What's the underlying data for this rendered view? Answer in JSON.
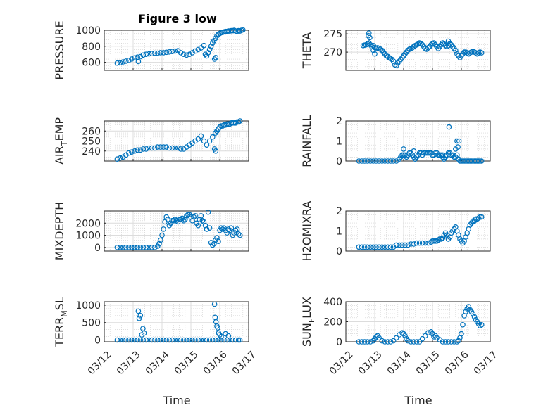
{
  "figure": {
    "title": "Figure 3 low",
    "xlabel": "Time"
  },
  "chart_data": [
    {
      "type": "scatter",
      "id": "pressure",
      "ylabel": "PRESSURE",
      "xlim": [
        "03/12",
        "03/17"
      ],
      "ylim": [
        500,
        1000
      ],
      "yticks": [
        600,
        800,
        1000
      ],
      "xticks": [
        "03/12",
        "03/13",
        "03/14",
        "03/15",
        "03/16",
        "03/17"
      ],
      "x": [
        0.45,
        0.55,
        0.65,
        0.75,
        0.85,
        0.95,
        1.05,
        1.15,
        1.25,
        1.35,
        1.45,
        1.55,
        1.65,
        1.75,
        1.85,
        1.95,
        2.05,
        2.15,
        2.25,
        2.35,
        2.45,
        2.55,
        2.65,
        2.75,
        2.85,
        2.95,
        3.05,
        3.15,
        3.25,
        3.35,
        3.45,
        3.5,
        3.55,
        3.6,
        3.65,
        3.7,
        3.75,
        3.8,
        3.85,
        3.9,
        3.95,
        4.0,
        4.05,
        4.1,
        4.15,
        4.2,
        4.25,
        4.3,
        4.35,
        4.4,
        4.45,
        4.5,
        4.55,
        4.6,
        4.65,
        4.7,
        4.75,
        4.8,
        1.18,
        3.82,
        3.86
      ],
      "y": [
        590,
        595,
        605,
        615,
        625,
        640,
        655,
        665,
        670,
        690,
        700,
        705,
        710,
        715,
        715,
        720,
        720,
        725,
        730,
        735,
        740,
        745,
        720,
        700,
        690,
        700,
        720,
        740,
        760,
        780,
        810,
        700,
        680,
        720,
        760,
        800,
        840,
        870,
        900,
        930,
        950,
        960,
        970,
        975,
        980,
        985,
        985,
        990,
        990,
        995,
        995,
        1000,
        990,
        985,
        995,
        990,
        1000,
        1005,
        610,
        640,
        660
      ]
    },
    {
      "type": "scatter",
      "id": "theta",
      "ylabel": "THETA",
      "xlim": [
        "03/12",
        "03/17"
      ],
      "ylim": [
        265,
        276
      ],
      "yticks": [
        270,
        275
      ],
      "xticks": [
        "03/12",
        "03/13",
        "03/14",
        "03/15",
        "03/16",
        "03/17"
      ],
      "x": [
        0.6,
        0.65,
        0.7,
        0.75,
        0.8,
        0.85,
        0.9,
        0.95,
        1.0,
        1.05,
        1.1,
        1.15,
        1.2,
        1.25,
        1.3,
        1.35,
        1.4,
        1.45,
        1.5,
        1.55,
        1.6,
        1.65,
        1.7,
        1.75,
        1.8,
        1.85,
        1.9,
        1.95,
        2.0,
        2.05,
        2.1,
        2.15,
        2.2,
        2.25,
        2.3,
        2.35,
        2.4,
        2.45,
        2.5,
        2.55,
        2.6,
        2.65,
        2.7,
        2.75,
        2.8,
        2.85,
        2.9,
        2.95,
        3.0,
        3.05,
        3.1,
        3.15,
        3.2,
        3.25,
        3.3,
        3.35,
        3.4,
        3.45,
        3.5,
        3.55,
        3.6,
        3.65,
        3.7,
        3.75,
        3.8,
        3.85,
        3.9,
        3.95,
        4.0,
        4.05,
        4.1,
        4.15,
        4.2,
        4.25,
        4.3,
        4.35,
        4.4,
        4.45,
        4.5,
        4.55,
        4.6,
        4.65,
        4.7,
        0.78,
        0.8,
        0.83,
        0.95,
        1.0,
        3.55,
        3.6
      ],
      "y": [
        271.8,
        271.9,
        272.0,
        272.3,
        272.5,
        272.0,
        271.5,
        271.8,
        271.3,
        271.0,
        271.2,
        271.0,
        270.8,
        270.5,
        270.0,
        269.5,
        269.0,
        268.8,
        268.5,
        268.2,
        268.0,
        267.5,
        266.5,
        266.3,
        267.0,
        267.5,
        268.0,
        268.5,
        269.0,
        269.5,
        270.0,
        270.5,
        270.8,
        271.0,
        271.2,
        271.5,
        271.8,
        272.0,
        272.2,
        272.5,
        272.3,
        272.0,
        271.5,
        271.0,
        270.8,
        271.2,
        271.5,
        272.0,
        272.3,
        272.5,
        272.0,
        271.5,
        271.0,
        271.5,
        272.0,
        272.5,
        272.2,
        271.8,
        271.5,
        271.8,
        272.3,
        272.0,
        271.5,
        271.0,
        270.5,
        269.5,
        269.0,
        268.5,
        269.0,
        269.5,
        270.0,
        270.0,
        269.8,
        269.5,
        269.8,
        270.0,
        270.2,
        270.0,
        269.8,
        269.5,
        269.8,
        270.0,
        269.8,
        274.5,
        275.2,
        274.0,
        270.5,
        269.5,
        273.0,
        272.2
      ]
    },
    {
      "type": "scatter",
      "id": "air_temp",
      "ylabel": "AIR_TEMP",
      "xlim": [
        "03/12",
        "03/17"
      ],
      "ylim": [
        230,
        270
      ],
      "yticks": [
        240,
        250,
        260
      ],
      "xticks": [
        "03/12",
        "03/13",
        "03/14",
        "03/15",
        "03/16",
        "03/17"
      ],
      "x": [
        0.45,
        0.55,
        0.65,
        0.75,
        0.85,
        0.95,
        1.05,
        1.15,
        1.25,
        1.35,
        1.45,
        1.55,
        1.65,
        1.75,
        1.85,
        1.95,
        2.05,
        2.15,
        2.25,
        2.35,
        2.45,
        2.55,
        2.65,
        2.75,
        2.85,
        2.95,
        3.05,
        3.15,
        3.25,
        3.35,
        3.45,
        3.55,
        3.65,
        3.75,
        3.85,
        3.9,
        3.95,
        4.0,
        4.05,
        4.1,
        4.15,
        4.2,
        4.25,
        4.3,
        4.35,
        4.4,
        4.45,
        4.5,
        4.55,
        4.6,
        4.65,
        4.7,
        3.82,
        3.86
      ],
      "y": [
        232,
        233,
        234,
        236,
        238,
        239,
        240,
        241,
        241,
        242,
        242,
        243,
        243,
        243,
        244,
        244,
        244,
        244,
        243,
        243,
        243,
        243,
        242,
        242,
        244,
        246,
        248,
        250,
        252,
        255,
        250,
        246,
        250,
        254,
        258,
        260,
        262,
        264,
        265,
        265,
        266,
        266,
        267,
        267,
        267,
        268,
        268,
        268,
        268,
        269,
        269,
        270,
        242,
        240
      ]
    },
    {
      "type": "scatter",
      "id": "rainfall",
      "ylabel": "RAINFALL",
      "xlim": [
        "03/12",
        "03/17"
      ],
      "ylim": [
        0,
        2
      ],
      "yticks": [
        0,
        1,
        2
      ],
      "xticks": [
        "03/12",
        "03/13",
        "03/14",
        "03/15",
        "03/16",
        "03/17"
      ],
      "x": [
        0.45,
        0.55,
        0.65,
        0.75,
        0.85,
        0.95,
        1.05,
        1.15,
        1.25,
        1.35,
        1.45,
        1.55,
        1.65,
        1.75,
        1.85,
        1.9,
        1.95,
        2.0,
        2.05,
        2.1,
        2.15,
        2.2,
        2.25,
        2.3,
        2.35,
        2.4,
        2.45,
        2.5,
        2.55,
        2.6,
        2.65,
        2.7,
        2.75,
        2.8,
        2.85,
        2.9,
        2.95,
        3.0,
        3.05,
        3.1,
        3.15,
        3.2,
        3.25,
        3.3,
        3.35,
        3.4,
        3.45,
        3.5,
        3.55,
        3.6,
        3.65,
        3.7,
        3.75,
        3.8,
        3.85,
        3.9,
        3.95,
        4.0,
        4.05,
        4.1,
        4.15,
        4.2,
        4.25,
        4.3,
        4.35,
        4.4,
        4.45,
        4.5,
        4.55,
        4.6,
        4.65,
        4.7,
        3.57,
        3.85,
        3.92,
        3.88,
        2.0,
        2.35,
        3.35,
        3.8
      ],
      "y": [
        0,
        0,
        0,
        0,
        0,
        0,
        0,
        0,
        0,
        0,
        0,
        0,
        0,
        0,
        0.1,
        0.2,
        0.3,
        0.3,
        0.3,
        0.2,
        0.3,
        0.4,
        0.4,
        0.3,
        0.2,
        0.1,
        0.2,
        0.3,
        0.4,
        0.4,
        0.3,
        0.4,
        0.4,
        0.4,
        0.4,
        0.4,
        0.4,
        0.3,
        0.3,
        0.4,
        0.4,
        0.3,
        0.3,
        0.3,
        0.2,
        0.1,
        0.2,
        0.3,
        0.4,
        0.4,
        0.3,
        0.3,
        0.2,
        0.2,
        0.3,
        0.1,
        0,
        0,
        0,
        0,
        0,
        0,
        0,
        0,
        0,
        0,
        0,
        0,
        0,
        0,
        0,
        0,
        1.7,
        1.0,
        1.0,
        0.7,
        0.6,
        0.5,
        0.3,
        0.6
      ]
    },
    {
      "type": "scatter",
      "id": "mixdepth",
      "ylabel": "MIXDEPTH",
      "xlim": [
        "03/12",
        "03/17"
      ],
      "ylim": [
        -300,
        3000
      ],
      "yticks": [
        0,
        1000,
        2000
      ],
      "xticks": [
        "03/12",
        "03/13",
        "03/14",
        "03/15",
        "03/16",
        "03/17"
      ],
      "x": [
        0.45,
        0.55,
        0.65,
        0.75,
        0.85,
        0.95,
        1.05,
        1.15,
        1.25,
        1.35,
        1.45,
        1.55,
        1.65,
        1.75,
        1.85,
        1.9,
        1.95,
        2.0,
        2.05,
        2.1,
        2.15,
        2.2,
        2.25,
        2.3,
        2.35,
        2.4,
        2.45,
        2.5,
        2.55,
        2.6,
        2.65,
        2.7,
        2.75,
        2.8,
        2.85,
        2.9,
        2.95,
        3.0,
        3.05,
        3.1,
        3.15,
        3.2,
        3.25,
        3.3,
        3.35,
        3.4,
        3.45,
        3.5,
        3.55,
        3.6,
        3.65,
        3.7,
        3.75,
        3.8,
        3.85,
        3.9,
        3.95,
        4.0,
        4.05,
        4.1,
        4.15,
        4.2,
        4.25,
        4.3,
        4.35,
        4.4,
        4.45,
        4.5,
        4.55,
        4.6,
        4.65,
        4.7
      ],
      "y": [
        0,
        0,
        0,
        0,
        0,
        0,
        0,
        0,
        0,
        0,
        0,
        0,
        0,
        0,
        100,
        300,
        600,
        1000,
        1500,
        2100,
        2500,
        2300,
        1800,
        2000,
        2200,
        2200,
        2300,
        2200,
        2100,
        2300,
        2300,
        2400,
        2200,
        2300,
        2600,
        2700,
        2700,
        2500,
        2200,
        2500,
        2600,
        2000,
        1800,
        2300,
        2600,
        2200,
        2100,
        1800,
        1500,
        2900,
        1600,
        400,
        200,
        300,
        600,
        800,
        500,
        1400,
        1600,
        1500,
        1600,
        1400,
        1200,
        1500,
        1400,
        1600,
        1000,
        1200,
        1400,
        1500,
        1100,
        1000
      ]
    },
    {
      "type": "scatter",
      "id": "h2omixra",
      "ylabel": "H2OMIXRA",
      "xlim": [
        "03/12",
        "03/17"
      ],
      "ylim": [
        0,
        2
      ],
      "yticks": [
        0,
        1,
        2
      ],
      "xticks": [
        "03/12",
        "03/13",
        "03/14",
        "03/15",
        "03/16",
        "03/17"
      ],
      "x": [
        0.45,
        0.55,
        0.65,
        0.75,
        0.85,
        0.95,
        1.05,
        1.15,
        1.25,
        1.35,
        1.45,
        1.55,
        1.65,
        1.75,
        1.85,
        1.95,
        2.05,
        2.15,
        2.25,
        2.35,
        2.45,
        2.55,
        2.65,
        2.75,
        2.85,
        2.95,
        3.0,
        3.05,
        3.1,
        3.15,
        3.2,
        3.25,
        3.3,
        3.35,
        3.4,
        3.45,
        3.5,
        3.55,
        3.6,
        3.65,
        3.7,
        3.75,
        3.8,
        3.85,
        3.9,
        3.95,
        4.0,
        4.05,
        4.1,
        4.15,
        4.2,
        4.25,
        4.3,
        4.35,
        4.4,
        4.45,
        4.5,
        4.55,
        4.6,
        4.65,
        4.7
      ],
      "y": [
        0.2,
        0.2,
        0.2,
        0.2,
        0.2,
        0.2,
        0.2,
        0.2,
        0.2,
        0.2,
        0.2,
        0.2,
        0.2,
        0.3,
        0.3,
        0.3,
        0.3,
        0.3,
        0.35,
        0.35,
        0.4,
        0.4,
        0.4,
        0.4,
        0.4,
        0.45,
        0.5,
        0.5,
        0.5,
        0.5,
        0.55,
        0.6,
        0.6,
        0.65,
        0.8,
        0.9,
        0.8,
        0.6,
        0.7,
        0.9,
        1.0,
        1.1,
        1.2,
        1.0,
        0.8,
        0.6,
        0.5,
        0.4,
        0.5,
        0.7,
        0.9,
        1.1,
        1.3,
        1.4,
        1.5,
        1.5,
        1.6,
        1.6,
        1.65,
        1.7,
        1.7
      ]
    },
    {
      "type": "scatter",
      "id": "terr_msl",
      "ylabel": "TERR_MSL",
      "xlim": [
        "03/12",
        "03/17"
      ],
      "ylim": [
        -50,
        1100
      ],
      "yticks": [
        0,
        500,
        1000
      ],
      "xticks": [
        "03/12",
        "03/13",
        "03/14",
        "03/15",
        "03/16",
        "03/17"
      ],
      "x": [
        0.45,
        0.55,
        0.65,
        0.75,
        0.85,
        0.95,
        1.05,
        1.15,
        1.25,
        1.35,
        1.45,
        1.55,
        1.65,
        1.75,
        1.85,
        1.95,
        2.05,
        2.15,
        2.25,
        2.35,
        2.45,
        2.55,
        2.65,
        2.75,
        2.85,
        2.95,
        3.05,
        3.15,
        3.25,
        3.35,
        3.45,
        3.55,
        3.65,
        3.75,
        3.85,
        3.95,
        4.05,
        4.15,
        4.25,
        4.35,
        4.45,
        4.55,
        4.65,
        4.7,
        1.18,
        1.21,
        1.25,
        1.3,
        1.34,
        1.38,
        3.82,
        3.84,
        3.87,
        3.9,
        3.93,
        3.96,
        4.0,
        4.05,
        4.2,
        4.3
      ],
      "y": [
        0,
        0,
        0,
        0,
        0,
        0,
        0,
        0,
        0,
        0,
        0,
        0,
        0,
        0,
        0,
        0,
        0,
        0,
        0,
        0,
        0,
        0,
        0,
        0,
        0,
        0,
        0,
        0,
        0,
        0,
        0,
        0,
        0,
        0,
        0,
        0,
        0,
        0,
        0,
        0,
        0,
        0,
        0,
        0,
        830,
        620,
        700,
        150,
        330,
        200,
        1030,
        650,
        520,
        400,
        350,
        200,
        150,
        100,
        180,
        120
      ]
    },
    {
      "type": "scatter",
      "id": "sun_flux",
      "ylabel": "SUN_FLUX",
      "xlim": [
        "03/12",
        "03/17"
      ],
      "ylim": [
        0,
        400
      ],
      "yticks": [
        0,
        200,
        400
      ],
      "xticks": [
        "03/12",
        "03/13",
        "03/14",
        "03/15",
        "03/16",
        "03/17"
      ],
      "x": [
        0.45,
        0.55,
        0.65,
        0.75,
        0.85,
        0.95,
        1.0,
        1.05,
        1.1,
        1.15,
        1.25,
        1.35,
        1.45,
        1.55,
        1.65,
        1.75,
        1.85,
        1.95,
        2.0,
        2.05,
        2.1,
        2.15,
        2.25,
        2.35,
        2.45,
        2.55,
        2.65,
        2.75,
        2.85,
        2.95,
        3.0,
        3.05,
        3.1,
        3.15,
        3.25,
        3.35,
        3.45,
        3.55,
        3.65,
        3.75,
        3.85,
        3.9,
        3.95,
        4.0,
        4.05,
        4.1,
        4.15,
        4.2,
        4.25,
        4.3,
        4.35,
        4.4,
        4.45,
        4.5,
        4.55,
        4.6,
        4.65,
        4.7
      ],
      "y": [
        0,
        0,
        0,
        0,
        0,
        10,
        30,
        50,
        60,
        40,
        10,
        0,
        0,
        0,
        10,
        40,
        70,
        90,
        80,
        60,
        30,
        10,
        0,
        0,
        0,
        0,
        30,
        60,
        90,
        100,
        80,
        50,
        60,
        40,
        20,
        0,
        0,
        0,
        0,
        0,
        0,
        10,
        40,
        80,
        170,
        260,
        300,
        330,
        350,
        320,
        300,
        280,
        250,
        220,
        200,
        180,
        160,
        170
      ]
    }
  ]
}
